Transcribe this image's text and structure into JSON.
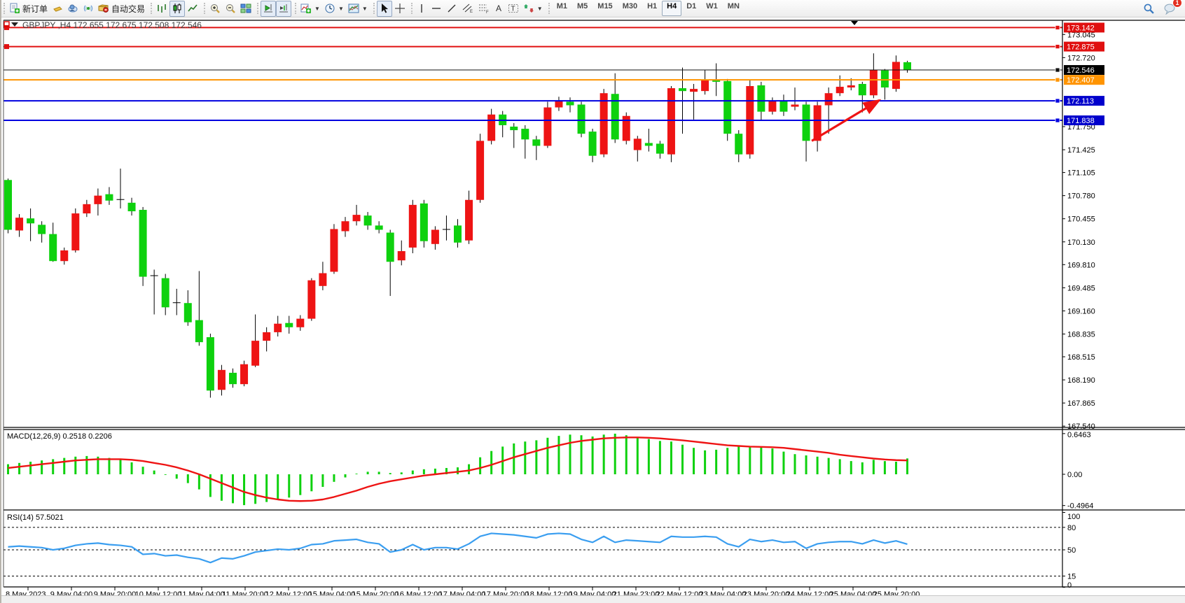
{
  "toolbar": {
    "new_order_label": "新订单",
    "autotrading_label": "自动交易",
    "periods": [
      "M1",
      "M5",
      "M15",
      "M30",
      "H1",
      "H4",
      "D1",
      "W1",
      "MN"
    ],
    "active_period": "H4",
    "chat_badge_count": "1",
    "icons": [
      "new-order-icon",
      "gold-bar-icon",
      "cloud-user-icon",
      "signal-icon",
      "autotrading-icon",
      "bar-chart-icon",
      "candlestick-chart-icon",
      "line-chart-icon",
      "zoom-in-icon",
      "zoom-out-icon",
      "tile-windows-icon",
      "auto-scroll-icon",
      "chart-shift-icon",
      "indicators-icon",
      "timeframe-clock-icon",
      "template-icon",
      "cursor-icon",
      "crosshair-icon",
      "vertical-line-icon",
      "horizontal-line-icon",
      "trendline-icon",
      "channel-icon",
      "fibonacci-icon",
      "text-icon",
      "label-icon",
      "arrows-icon",
      "search-icon",
      "chat-icon"
    ]
  },
  "chart_data": [
    {
      "type": "candlestick",
      "symbol": "GBPJPY",
      "timeframe": "H4",
      "title": "GBPJPY ,H4  172.655 172.675 172.508 172.546",
      "colors": {
        "bull": "#ee1414",
        "bear": "#0ed10e",
        "wick": "#000000"
      },
      "ylim": [
        167.45,
        173.25
      ],
      "y_ticks": [
        173.045,
        172.72,
        171.75,
        171.425,
        171.105,
        170.78,
        170.455,
        170.13,
        169.81,
        169.485,
        169.16,
        168.835,
        168.515,
        168.19,
        167.865,
        167.54
      ],
      "x_labels": [
        "8 May 2023",
        "9 May 04:00",
        "9 May 20:00",
        "10 May 12:00",
        "11 May 04:00",
        "11 May 20:00",
        "12 May 12:00",
        "15 May 04:00",
        "15 May 20:00",
        "16 May 12:00",
        "17 May 04:00",
        "17 May 20:00",
        "18 May 12:00",
        "19 May 04:00",
        "21 May 23:00",
        "22 May 12:00",
        "23 May 04:00",
        "23 May 20:00",
        "24 May 12:00",
        "25 May 04:00",
        "25 May 20:00"
      ],
      "hlines": [
        {
          "price": 173.142,
          "color": "#e01010",
          "width": 2,
          "badge": "173.142",
          "badge_bg": "#e01010"
        },
        {
          "price": 172.875,
          "color": "#e01010",
          "width": 2,
          "badge": "172.875",
          "badge_bg": "#e01010"
        },
        {
          "price": 172.546,
          "color": "#111111",
          "width": 1,
          "badge": "172.546",
          "badge_bg": "#000000"
        },
        {
          "price": 172.407,
          "color": "#ff9400",
          "width": 2,
          "badge": "172.407",
          "badge_bg": "#ff9400"
        },
        {
          "price": 172.113,
          "color": "#0000e0",
          "width": 2,
          "badge": "172.113",
          "badge_bg": "#0000cc"
        },
        {
          "price": 171.838,
          "color": "#0000e0",
          "width": 2,
          "badge": "171.838",
          "badge_bg": "#0000cc"
        }
      ],
      "annotation_arrow": {
        "color": "#ee1414",
        "from_x_index": 71.5,
        "from_price": 171.55,
        "to_x_index": 77.5,
        "to_price": 172.12
      },
      "candles": [
        [
          171.0,
          171.02,
          170.25,
          170.3
        ],
        [
          170.29,
          170.52,
          170.2,
          170.47
        ],
        [
          170.46,
          170.6,
          170.14,
          170.39
        ],
        [
          170.37,
          170.42,
          170.12,
          170.24
        ],
        [
          170.24,
          170.4,
          169.85,
          169.86
        ],
        [
          169.86,
          170.05,
          169.81,
          170.01
        ],
        [
          170.01,
          170.6,
          169.98,
          170.53
        ],
        [
          170.53,
          170.72,
          170.48,
          170.66
        ],
        [
          170.66,
          170.88,
          170.5,
          170.78
        ],
        [
          170.8,
          170.9,
          170.65,
          170.71
        ],
        [
          170.73,
          171.16,
          170.6,
          170.72
        ],
        [
          170.68,
          170.75,
          170.5,
          170.56
        ],
        [
          170.58,
          170.62,
          169.51,
          169.64
        ],
        [
          169.66,
          169.74,
          169.11,
          169.65
        ],
        [
          169.62,
          169.68,
          169.1,
          169.21
        ],
        [
          169.28,
          169.47,
          169.1,
          169.27
        ],
        [
          169.27,
          169.45,
          168.95,
          169.0
        ],
        [
          169.03,
          169.72,
          168.67,
          168.72
        ],
        [
          168.79,
          168.84,
          167.94,
          168.04
        ],
        [
          168.05,
          168.4,
          167.97,
          168.33
        ],
        [
          168.29,
          168.35,
          168.08,
          168.13
        ],
        [
          168.13,
          168.46,
          168.1,
          168.41
        ],
        [
          168.39,
          169.11,
          168.37,
          168.74
        ],
        [
          168.74,
          168.93,
          168.59,
          168.86
        ],
        [
          168.86,
          169.09,
          168.8,
          168.98
        ],
        [
          168.99,
          169.09,
          168.84,
          168.93
        ],
        [
          168.93,
          169.1,
          168.88,
          169.05
        ],
        [
          169.05,
          169.62,
          169.02,
          169.59
        ],
        [
          169.51,
          169.85,
          169.45,
          169.69
        ],
        [
          169.71,
          170.38,
          169.68,
          170.31
        ],
        [
          170.28,
          170.48,
          170.2,
          170.42
        ],
        [
          170.42,
          170.65,
          170.36,
          170.51
        ],
        [
          170.5,
          170.55,
          170.3,
          170.36
        ],
        [
          170.36,
          170.42,
          170.25,
          170.3
        ],
        [
          170.26,
          170.3,
          169.37,
          169.85
        ],
        [
          169.87,
          170.15,
          169.8,
          170.0
        ],
        [
          170.05,
          170.72,
          169.97,
          170.65
        ],
        [
          170.67,
          170.72,
          170.05,
          170.14
        ],
        [
          170.1,
          170.35,
          170.02,
          170.3
        ],
        [
          170.3,
          170.5,
          170.15,
          170.31
        ],
        [
          170.36,
          170.45,
          170.05,
          170.12
        ],
        [
          170.15,
          170.85,
          170.1,
          170.72
        ],
        [
          170.72,
          171.65,
          170.68,
          171.55
        ],
        [
          171.55,
          172.0,
          171.5,
          171.92
        ],
        [
          171.92,
          171.97,
          171.6,
          171.77
        ],
        [
          171.75,
          171.8,
          171.45,
          171.7
        ],
        [
          171.72,
          171.77,
          171.3,
          171.57
        ],
        [
          171.57,
          171.62,
          171.28,
          171.48
        ],
        [
          171.48,
          172.1,
          171.45,
          172.02
        ],
        [
          172.02,
          172.17,
          171.97,
          172.12
        ],
        [
          172.1,
          172.16,
          171.95,
          172.05
        ],
        [
          172.06,
          172.1,
          171.6,
          171.65
        ],
        [
          171.68,
          171.72,
          171.25,
          171.34
        ],
        [
          171.36,
          172.28,
          171.32,
          172.22
        ],
        [
          172.21,
          172.5,
          171.52,
          171.57
        ],
        [
          171.55,
          171.95,
          171.5,
          171.9
        ],
        [
          171.42,
          171.62,
          171.26,
          171.58
        ],
        [
          171.52,
          171.72,
          171.4,
          171.48
        ],
        [
          171.51,
          171.55,
          171.3,
          171.37
        ],
        [
          171.36,
          172.32,
          171.25,
          172.29
        ],
        [
          172.29,
          172.58,
          171.65,
          172.25
        ],
        [
          172.24,
          172.35,
          171.85,
          172.28
        ],
        [
          172.25,
          172.55,
          172.2,
          172.4
        ],
        [
          172.41,
          172.64,
          172.18,
          172.38
        ],
        [
          172.39,
          172.42,
          171.55,
          171.65
        ],
        [
          171.65,
          171.7,
          171.25,
          171.36
        ],
        [
          171.36,
          172.4,
          171.3,
          172.32
        ],
        [
          172.33,
          172.38,
          171.83,
          171.96
        ],
        [
          171.96,
          172.16,
          171.92,
          172.11
        ],
        [
          172.11,
          172.2,
          171.9,
          171.96
        ],
        [
          172.03,
          172.3,
          171.98,
          172.06
        ],
        [
          172.06,
          172.1,
          171.26,
          171.55
        ],
        [
          171.55,
          172.1,
          171.4,
          172.05
        ],
        [
          172.05,
          172.3,
          171.65,
          172.22
        ],
        [
          172.22,
          172.47,
          172.18,
          172.31
        ],
        [
          172.3,
          172.43,
          172.26,
          172.33
        ],
        [
          172.35,
          172.38,
          171.95,
          172.19
        ],
        [
          172.19,
          172.78,
          172.15,
          172.55
        ],
        [
          172.54,
          172.56,
          172.13,
          172.3
        ],
        [
          172.28,
          172.75,
          172.24,
          172.66
        ],
        [
          172.655,
          172.675,
          172.508,
          172.546
        ]
      ]
    },
    {
      "type": "bar",
      "name": "MACD",
      "label": "MACD(12,26,9) 0.2518 0.2206",
      "y_ticks": [
        "0.6463",
        "0.00",
        "-0.4964"
      ],
      "y_tick_values": [
        0.6463,
        0.0,
        -0.4964
      ],
      "bar_color": "#0ed10e",
      "signal_color": "#ee1414",
      "values": [
        0.16,
        0.18,
        0.2,
        0.22,
        0.24,
        0.26,
        0.28,
        0.29,
        0.28,
        0.26,
        0.23,
        0.19,
        0.12,
        0.06,
        -0.01,
        -0.07,
        -0.14,
        -0.24,
        -0.36,
        -0.42,
        -0.46,
        -0.49,
        -0.47,
        -0.44,
        -0.4,
        -0.37,
        -0.33,
        -0.27,
        -0.2,
        -0.12,
        -0.05,
        0.01,
        0.04,
        0.04,
        0.02,
        0.03,
        0.06,
        0.08,
        0.09,
        0.1,
        0.11,
        0.16,
        0.27,
        0.37,
        0.44,
        0.49,
        0.52,
        0.54,
        0.58,
        0.61,
        0.63,
        0.62,
        0.6,
        0.63,
        0.645,
        0.62,
        0.59,
        0.56,
        0.53,
        0.52,
        0.47,
        0.42,
        0.38,
        0.39,
        0.42,
        0.44,
        0.45,
        0.44,
        0.41,
        0.36,
        0.32,
        0.3,
        0.28,
        0.26,
        0.24,
        0.21,
        0.19,
        0.23,
        0.21,
        0.2,
        0.2518
      ],
      "signal": [
        0.1,
        0.12,
        0.14,
        0.16,
        0.18,
        0.2,
        0.22,
        0.23,
        0.24,
        0.24,
        0.24,
        0.23,
        0.21,
        0.18,
        0.15,
        0.11,
        0.06,
        0.0,
        -0.07,
        -0.14,
        -0.21,
        -0.28,
        -0.33,
        -0.37,
        -0.4,
        -0.42,
        -0.425,
        -0.42,
        -0.4,
        -0.36,
        -0.31,
        -0.26,
        -0.2,
        -0.15,
        -0.11,
        -0.08,
        -0.05,
        -0.02,
        0.0,
        0.02,
        0.04,
        0.06,
        0.1,
        0.15,
        0.21,
        0.27,
        0.32,
        0.37,
        0.42,
        0.46,
        0.5,
        0.53,
        0.55,
        0.57,
        0.58,
        0.585,
        0.585,
        0.58,
        0.57,
        0.555,
        0.54,
        0.52,
        0.5,
        0.48,
        0.46,
        0.45,
        0.44,
        0.435,
        0.43,
        0.42,
        0.4,
        0.38,
        0.36,
        0.34,
        0.31,
        0.29,
        0.27,
        0.25,
        0.235,
        0.225,
        0.2206
      ]
    },
    {
      "type": "line",
      "name": "RSI",
      "label": "RSI(14) 57.5021",
      "line_color": "#3a9ef0",
      "levels": [
        80,
        50,
        15
      ],
      "y_ticks": [
        "100",
        "80",
        "50",
        "15",
        "0"
      ],
      "y_tick_values": [
        100,
        80,
        50,
        15,
        0
      ],
      "values": [
        54,
        55,
        54,
        53,
        50,
        52,
        56,
        58,
        59,
        57,
        56,
        54,
        44,
        45,
        42,
        43,
        40,
        38,
        33,
        39,
        38,
        42,
        47,
        49,
        51,
        50,
        52,
        57,
        58,
        62,
        63,
        64,
        60,
        58,
        47,
        50,
        57,
        50,
        53,
        53,
        51,
        58,
        68,
        72,
        71,
        70,
        68,
        66,
        71,
        72,
        71,
        64,
        60,
        68,
        60,
        63,
        62,
        61,
        60,
        68,
        67,
        67,
        68,
        67,
        58,
        54,
        64,
        61,
        63,
        60,
        61,
        52,
        58,
        60,
        61,
        61,
        58,
        63,
        59,
        62,
        57.5021
      ]
    }
  ]
}
